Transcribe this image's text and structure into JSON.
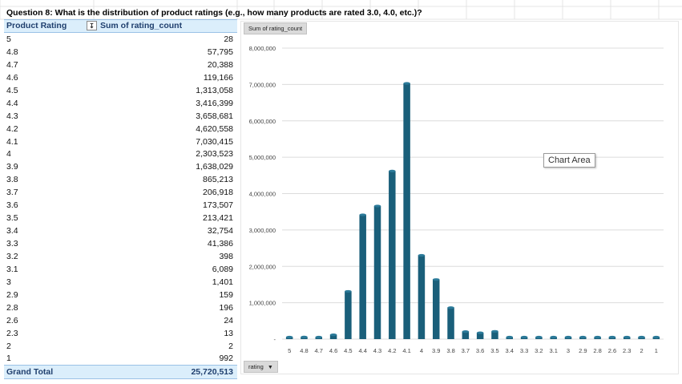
{
  "question": "Question 8: What is the distribution of product ratings (e.g., how many products are rated 3.0, 4.0, etc.)?",
  "pivot": {
    "header_rating": "Product Rating",
    "header_sum": "Sum of rating_count",
    "sort_icon": "sort-descending-filter-icon",
    "rows": [
      {
        "rating": "5",
        "count": "28"
      },
      {
        "rating": "4.8",
        "count": "57,795"
      },
      {
        "rating": "4.7",
        "count": "20,388"
      },
      {
        "rating": "4.6",
        "count": "119,166"
      },
      {
        "rating": "4.5",
        "count": "1,313,058"
      },
      {
        "rating": "4.4",
        "count": "3,416,399"
      },
      {
        "rating": "4.3",
        "count": "3,658,681"
      },
      {
        "rating": "4.2",
        "count": "4,620,558"
      },
      {
        "rating": "4.1",
        "count": "7,030,415"
      },
      {
        "rating": "4",
        "count": "2,303,523"
      },
      {
        "rating": "3.9",
        "count": "1,638,029"
      },
      {
        "rating": "3.8",
        "count": "865,213"
      },
      {
        "rating": "3.7",
        "count": "206,918"
      },
      {
        "rating": "3.6",
        "count": "173,507"
      },
      {
        "rating": "3.5",
        "count": "213,421"
      },
      {
        "rating": "3.4",
        "count": "32,754"
      },
      {
        "rating": "3.3",
        "count": "41,386"
      },
      {
        "rating": "3.2",
        "count": "398"
      },
      {
        "rating": "3.1",
        "count": "6,089"
      },
      {
        "rating": "3",
        "count": "1,401"
      },
      {
        "rating": "2.9",
        "count": "159"
      },
      {
        "rating": "2.8",
        "count": "196"
      },
      {
        "rating": "2.6",
        "count": "24"
      },
      {
        "rating": "2.3",
        "count": "13"
      },
      {
        "rating": "2",
        "count": "2"
      },
      {
        "rating": "1",
        "count": "992"
      }
    ],
    "total_label": "Grand Total",
    "total_value": "25,720,513"
  },
  "chart_field_buttons": {
    "values_button": "Sum of rating_count",
    "axis_button": "rating",
    "axis_button_icon": "dropdown-arrow-icon"
  },
  "tooltip": "Chart Area",
  "colors": {
    "bar": "#1a5f7a",
    "bar_top": "#2b7a99",
    "pivot_header_bg": "#dbeefb",
    "pivot_header_text": "#1f3f6e",
    "gridline": "#dcdcdc"
  },
  "chart_data": {
    "type": "bar",
    "title": "",
    "xlabel": "",
    "ylabel": "",
    "categories": [
      "5",
      "4.8",
      "4.7",
      "4.6",
      "4.5",
      "4.4",
      "4.3",
      "4.2",
      "4.1",
      "4",
      "3.9",
      "3.8",
      "3.7",
      "3.6",
      "3.5",
      "3.4",
      "3.3",
      "3.2",
      "3.1",
      "3",
      "2.9",
      "2.8",
      "2.6",
      "2.3",
      "2",
      "1"
    ],
    "values": [
      28,
      57795,
      20388,
      119166,
      1313058,
      3416399,
      3658681,
      4620558,
      7030415,
      2303523,
      1638029,
      865213,
      206918,
      173507,
      213421,
      32754,
      41386,
      398,
      6089,
      1401,
      159,
      196,
      24,
      13,
      2,
      992
    ],
    "ylim": [
      0,
      8000000
    ],
    "yticks": [
      0,
      1000000,
      2000000,
      3000000,
      4000000,
      5000000,
      6000000,
      7000000,
      8000000
    ],
    "ytick_labels": [
      "-",
      "1,000,000",
      "2,000,000",
      "3,000,000",
      "4,000,000",
      "5,000,000",
      "6,000,000",
      "7,000,000",
      "8,000,000"
    ],
    "grid": true,
    "legend": "none"
  }
}
